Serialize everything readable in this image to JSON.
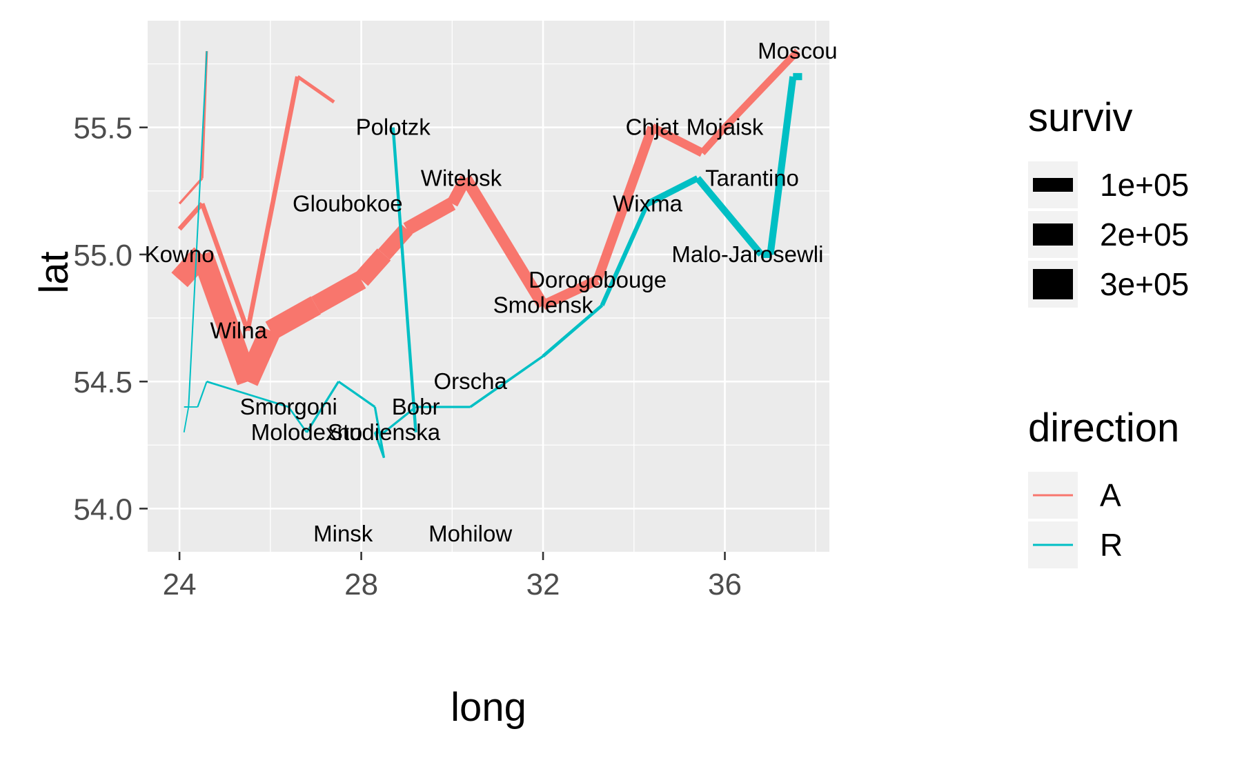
{
  "chart_data": {
    "type": "line",
    "xlabel": "long",
    "ylabel": "lat",
    "xlim": [
      23.3,
      38.3
    ],
    "ylim": [
      53.83,
      55.92
    ],
    "x_ticks": [
      24,
      28,
      32,
      36
    ],
    "x_tick_labels": [
      "24",
      "28",
      "32",
      "36"
    ],
    "y_ticks": [
      54.0,
      54.5,
      55.0,
      55.5
    ],
    "y_tick_labels": [
      "54.0",
      "54.5",
      "55.0",
      "55.5"
    ],
    "grid": true,
    "colors": {
      "A": "#F8766D",
      "R": "#00BFC4"
    },
    "series": [
      {
        "name": "A",
        "group": 1,
        "points": [
          {
            "x": 24.0,
            "y": 54.9,
            "surviv": 340000
          },
          {
            "x": 24.5,
            "y": 55.0,
            "surviv": 340000
          },
          {
            "x": 25.5,
            "y": 54.5,
            "surviv": 340000
          },
          {
            "x": 26.0,
            "y": 54.7,
            "surviv": 320000
          },
          {
            "x": 27.0,
            "y": 54.8,
            "surviv": 300000
          },
          {
            "x": 28.0,
            "y": 54.9,
            "surviv": 280000
          },
          {
            "x": 28.5,
            "y": 55.0,
            "surviv": 240000
          },
          {
            "x": 29.0,
            "y": 55.1,
            "surviv": 210000
          },
          {
            "x": 30.0,
            "y": 55.2,
            "surviv": 180000
          },
          {
            "x": 30.3,
            "y": 55.3,
            "surviv": 175000
          },
          {
            "x": 32.0,
            "y": 54.8,
            "surviv": 145000
          },
          {
            "x": 33.2,
            "y": 54.9,
            "surviv": 140000
          },
          {
            "x": 34.4,
            "y": 55.5,
            "surviv": 127100
          },
          {
            "x": 35.5,
            "y": 55.4,
            "surviv": 100000
          },
          {
            "x": 36.0,
            "y": 55.5,
            "surviv": 100000
          },
          {
            "x": 37.6,
            "y": 55.8,
            "surviv": 100000
          }
        ]
      },
      {
        "name": "R",
        "group": 1,
        "points": [
          {
            "x": 37.7,
            "y": 55.7,
            "surviv": 100000
          },
          {
            "x": 37.5,
            "y": 55.7,
            "surviv": 98000
          },
          {
            "x": 37.0,
            "y": 55.0,
            "surviv": 97000
          },
          {
            "x": 36.8,
            "y": 55.0,
            "surviv": 96000
          },
          {
            "x": 35.4,
            "y": 55.3,
            "surviv": 87000
          },
          {
            "x": 34.3,
            "y": 55.2,
            "surviv": 55000
          },
          {
            "x": 33.3,
            "y": 54.8,
            "surviv": 37000
          },
          {
            "x": 32.0,
            "y": 54.6,
            "surviv": 24000
          },
          {
            "x": 30.4,
            "y": 54.4,
            "surviv": 20000
          },
          {
            "x": 29.2,
            "y": 54.4,
            "surviv": 20000
          },
          {
            "x": 28.5,
            "y": 54.3,
            "surviv": 20000
          },
          {
            "x": 28.3,
            "y": 54.3,
            "surviv": 20000
          }
        ]
      },
      {
        "name": "A",
        "group": 2,
        "points": [
          {
            "x": 24.0,
            "y": 55.1,
            "surviv": 60000
          },
          {
            "x": 24.5,
            "y": 55.2,
            "surviv": 60000
          },
          {
            "x": 25.5,
            "y": 54.7,
            "surviv": 60000
          },
          {
            "x": 26.6,
            "y": 55.7,
            "surviv": 40000
          },
          {
            "x": 27.4,
            "y": 55.6,
            "surviv": 33000
          }
        ]
      },
      {
        "name": "R",
        "group": 2,
        "points": [
          {
            "x": 28.7,
            "y": 55.5,
            "surviv": 33000
          },
          {
            "x": 29.2,
            "y": 54.3,
            "surviv": 30000
          }
        ]
      },
      {
        "name": "A",
        "group": 3,
        "points": [
          {
            "x": 24.0,
            "y": 55.2,
            "surviv": 22000
          },
          {
            "x": 24.5,
            "y": 55.3,
            "surviv": 22000
          },
          {
            "x": 24.6,
            "y": 55.8,
            "surviv": 6000
          }
        ]
      },
      {
        "name": "R",
        "group": 3,
        "points": [
          {
            "x": 24.6,
            "y": 55.8,
            "surviv": 6000
          },
          {
            "x": 24.2,
            "y": 54.4,
            "surviv": 6000
          },
          {
            "x": 24.1,
            "y": 54.4,
            "surviv": 6000
          }
        ]
      },
      {
        "name": "R",
        "group": 1,
        "points": [
          {
            "x": 28.3,
            "y": 54.3,
            "surviv": 20000
          },
          {
            "x": 28.5,
            "y": 54.2,
            "surviv": 20000
          },
          {
            "x": 28.3,
            "y": 54.4,
            "surviv": 20000
          },
          {
            "x": 27.5,
            "y": 54.5,
            "surviv": 20000
          },
          {
            "x": 26.8,
            "y": 54.3,
            "surviv": 12000
          },
          {
            "x": 26.4,
            "y": 54.4,
            "surviv": 14000
          },
          {
            "x": 24.6,
            "y": 54.5,
            "surviv": 8000
          },
          {
            "x": 24.4,
            "y": 54.4,
            "surviv": 4000
          },
          {
            "x": 24.2,
            "y": 54.4,
            "surviv": 4000
          },
          {
            "x": 24.1,
            "y": 54.3,
            "surviv": 4000
          }
        ]
      }
    ],
    "cities": [
      {
        "name": "Kowno",
        "x": 24.0,
        "y": 55.0
      },
      {
        "name": "Wilna",
        "x": 25.3,
        "y": 54.7
      },
      {
        "name": "Smorgoni",
        "x": 26.4,
        "y": 54.4
      },
      {
        "name": "Molodexno",
        "x": 26.8,
        "y": 54.3
      },
      {
        "name": "Gloubokoe",
        "x": 27.7,
        "y": 55.2
      },
      {
        "name": "Minsk",
        "x": 27.6,
        "y": 53.9
      },
      {
        "name": "Studienska",
        "x": 28.5,
        "y": 54.3
      },
      {
        "name": "Polotzk",
        "x": 28.7,
        "y": 55.5
      },
      {
        "name": "Bobr",
        "x": 29.2,
        "y": 54.4
      },
      {
        "name": "Witebsk",
        "x": 30.2,
        "y": 55.3
      },
      {
        "name": "Orscha",
        "x": 30.4,
        "y": 54.5
      },
      {
        "name": "Mohilow",
        "x": 30.4,
        "y": 53.9
      },
      {
        "name": "Smolensk",
        "x": 32.0,
        "y": 54.8
      },
      {
        "name": "Dorogobouge",
        "x": 33.2,
        "y": 54.9
      },
      {
        "name": "Wixma",
        "x": 34.3,
        "y": 55.2
      },
      {
        "name": "Chjat",
        "x": 34.4,
        "y": 55.5
      },
      {
        "name": "Mojaisk",
        "x": 36.0,
        "y": 55.5
      },
      {
        "name": "Tarantino",
        "x": 36.6,
        "y": 55.3
      },
      {
        "name": "Malo-Jarosewli",
        "x": 36.5,
        "y": 55.0
      },
      {
        "name": "Moscou",
        "x": 37.6,
        "y": 55.8
      }
    ],
    "legend": {
      "placement": "right",
      "size_title": "surviv",
      "size_entries": [
        {
          "label": "1e+05",
          "value": 100000
        },
        {
          "label": "2e+05",
          "value": 200000
        },
        {
          "label": "3e+05",
          "value": 300000
        }
      ],
      "color_title": "direction",
      "color_entries": [
        {
          "label": "A",
          "key": "A"
        },
        {
          "label": "R",
          "key": "R"
        }
      ]
    }
  }
}
